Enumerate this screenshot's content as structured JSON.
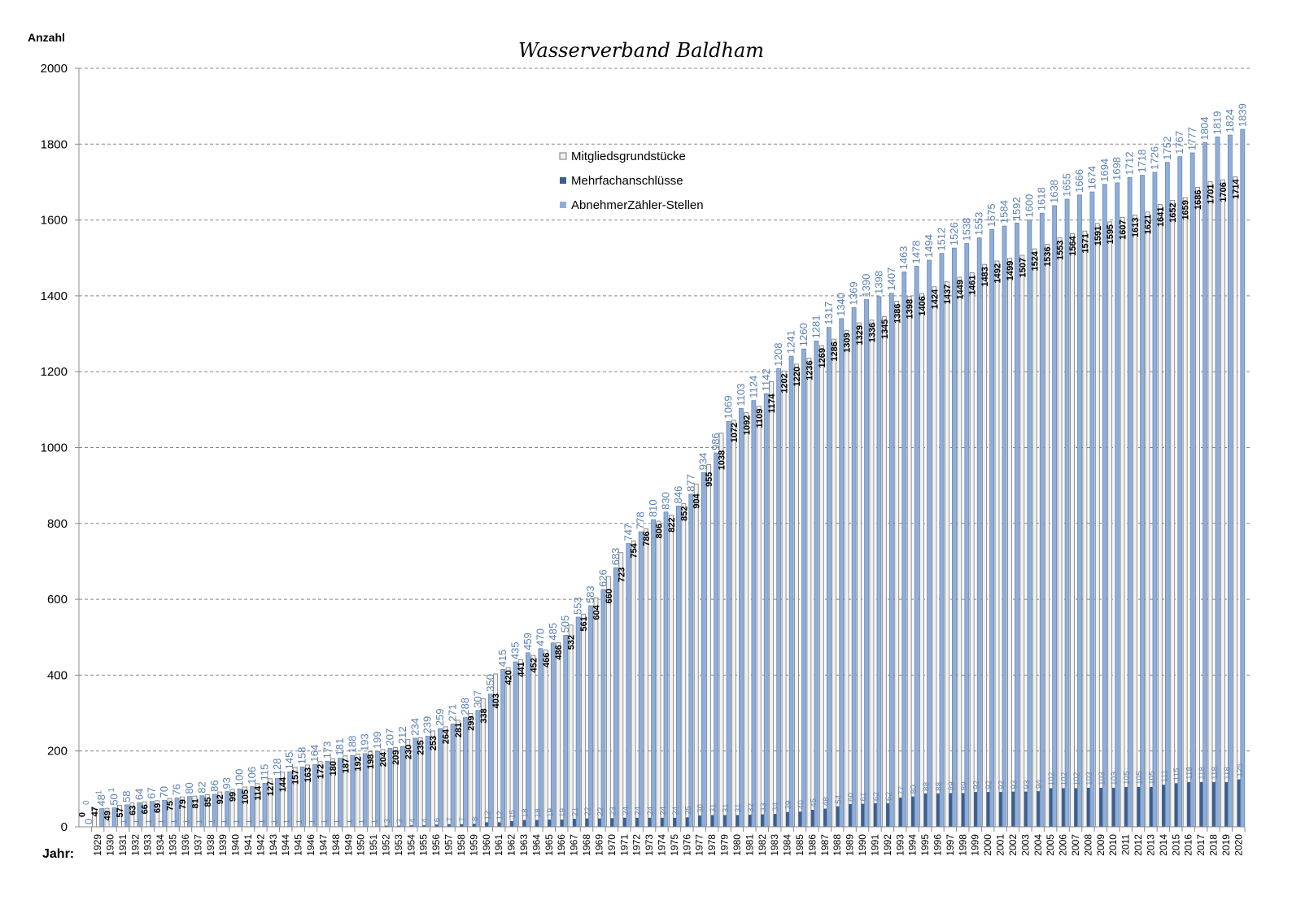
{
  "chart_data": {
    "type": "bar",
    "title": "Wasserverband Baldham",
    "ylabel": "Anzahl",
    "xlabel": "Jahr:",
    "ylim": [
      0,
      2000
    ],
    "yticks": [
      0,
      200,
      400,
      600,
      800,
      1000,
      1200,
      1400,
      1600,
      1800,
      2000
    ],
    "grid": true,
    "legend_position": "upper-center",
    "categories": [
      "",
      "1929",
      "1930",
      "1931",
      "1932",
      "1933",
      "1934",
      "1935",
      "1936",
      "1937",
      "1938",
      "1939",
      "1940",
      "1941",
      "1942",
      "1943",
      "1944",
      "1945",
      "1946",
      "1947",
      "1948",
      "1949",
      "1950",
      "1951",
      "1952",
      "1953",
      "1954",
      "1955",
      "1956",
      "1957",
      "1958",
      "1959",
      "1960",
      "1961",
      "1962",
      "1963",
      "1964",
      "1965",
      "1966",
      "1967",
      "1968",
      "1969",
      "1970",
      "1971",
      "1972",
      "1973",
      "1974",
      "1975",
      "1976",
      "1977",
      "1978",
      "1979",
      "1980",
      "1981",
      "1982",
      "1983",
      "1984",
      "1985",
      "1986",
      "1987",
      "1988",
      "1989",
      "1990",
      "1991",
      "1992",
      "1993",
      "1994",
      "1995",
      "1996",
      "1997",
      "1998",
      "1999",
      "2000",
      "2001",
      "2002",
      "2003",
      "2004",
      "2005",
      "2006",
      "2007",
      "2008",
      "2009",
      "2010",
      "2011",
      "2012",
      "2013",
      "2014",
      "2015",
      "2016",
      "2017",
      "2018",
      "2019",
      "2020"
    ],
    "series": [
      {
        "name": "Mitgliedsgrundstücke",
        "color": "#f2f2f2",
        "values": [
          0,
          47,
          49,
          57,
          63,
          66,
          69,
          75,
          79,
          81,
          85,
          92,
          99,
          105,
          114,
          127,
          144,
          157,
          163,
          172,
          180,
          187,
          192,
          198,
          204,
          209,
          230,
          235,
          253,
          264,
          281,
          299,
          338,
          403,
          420,
          441,
          452,
          466,
          486,
          532,
          561,
          604,
          660,
          723,
          754,
          786,
          806,
          822,
          852,
          904,
          955,
          1038,
          1072,
          1092,
          1109,
          1174,
          1202,
          1220,
          1236,
          1269,
          1286,
          1309,
          1329,
          1336,
          1345,
          1386,
          1398,
          1406,
          1424,
          1437,
          1449,
          1461,
          1483,
          1492,
          1499,
          1507,
          1524,
          1536,
          1553,
          1564,
          1571,
          1591,
          1595,
          1607,
          1613,
          1621,
          1641,
          1652,
          1659,
          1686,
          1701,
          1706,
          1714
        ]
      },
      {
        "name": "Mehrfachanschlüsse",
        "color": "#3b5f8f",
        "values": [
          0,
          1,
          1,
          1,
          1,
          1,
          1,
          1,
          1,
          1,
          1,
          1,
          1,
          1,
          1,
          1,
          1,
          1,
          1,
          1,
          1,
          1,
          1,
          1,
          3,
          3,
          4,
          4,
          6,
          7,
          7,
          8,
          12,
          12,
          15,
          18,
          18,
          19,
          19,
          21,
          22,
          22,
          23,
          24,
          24,
          24,
          24,
          24,
          25,
          30,
          31,
          31,
          31,
          32,
          33,
          34,
          39,
          40,
          45,
          48,
          54,
          60,
          61,
          62,
          62,
          77,
          80,
          88,
          88,
          89,
          89,
          92,
          92,
          92,
          93,
          93,
          94,
          102,
          102,
          102,
          103,
          103,
          103,
          105,
          105,
          105,
          111,
          115,
          118,
          118,
          118,
          118,
          125
        ]
      },
      {
        "name": "AbnehmerZähler-Stellen",
        "color": "#8eaedb",
        "values": [
          0,
          48,
          50,
          58,
          64,
          67,
          70,
          76,
          80,
          82,
          86,
          93,
          100,
          106,
          115,
          128,
          145,
          158,
          164,
          173,
          181,
          188,
          193,
          199,
          207,
          212,
          234,
          239,
          259,
          271,
          288,
          307,
          350,
          415,
          435,
          459,
          470,
          485,
          505,
          553,
          583,
          626,
          683,
          747,
          778,
          810,
          830,
          846,
          877,
          934,
          986,
          1069,
          1103,
          1124,
          1142,
          1208,
          1241,
          1260,
          1281,
          1317,
          1340,
          1369,
          1390,
          1398,
          1407,
          1463,
          1478,
          1494,
          1512,
          1526,
          1538,
          1553,
          1575,
          1584,
          1592,
          1600,
          1618,
          1638,
          1655,
          1666,
          1674,
          1694,
          1698,
          1712,
          1718,
          1726,
          1752,
          1767,
          1777,
          1804,
          1819,
          1824,
          1839
        ]
      }
    ]
  }
}
